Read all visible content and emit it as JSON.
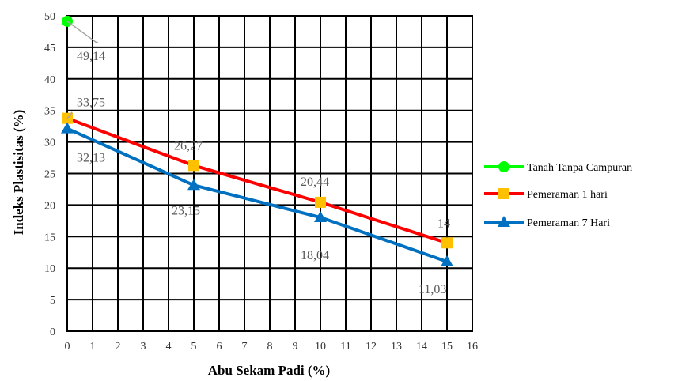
{
  "chart_data": {
    "type": "line",
    "xlabel": "Abu Sekam Padi (%)",
    "ylabel": "Indeks Plastisitas (%)",
    "xlim": [
      0,
      16
    ],
    "ylim": [
      0,
      50
    ],
    "x_ticks": [
      0,
      1,
      2,
      3,
      4,
      5,
      6,
      7,
      8,
      9,
      10,
      11,
      12,
      13,
      14,
      15,
      16
    ],
    "y_ticks": [
      0,
      5,
      10,
      15,
      20,
      25,
      30,
      35,
      40,
      45,
      50
    ],
    "grid": true,
    "legend_position": "right",
    "series": [
      {
        "name": "Tanah Tanpa Campuran",
        "color": "#00FF00",
        "marker": "circle",
        "points": [
          {
            "x": 0,
            "y": 49.14,
            "label": "49,14"
          }
        ]
      },
      {
        "name": "Pemeraman 1 hari",
        "color": "#FF0000",
        "marker_color": "#FFC000",
        "marker": "square",
        "points": [
          {
            "x": 0,
            "y": 33.75,
            "label": "33,75"
          },
          {
            "x": 5,
            "y": 26.27,
            "label": "26,27"
          },
          {
            "x": 10,
            "y": 20.44,
            "label": "20,44"
          },
          {
            "x": 15,
            "y": 14,
            "label": "14"
          }
        ]
      },
      {
        "name": "Pemeraman 7 Hari",
        "color": "#0070C0",
        "marker": "triangle",
        "points": [
          {
            "x": 0,
            "y": 32.13,
            "label": "32,13"
          },
          {
            "x": 5,
            "y": 23.15,
            "label": "23,15"
          },
          {
            "x": 10,
            "y": 18.04,
            "label": "18,04"
          },
          {
            "x": 15,
            "y": 11.03,
            "label": "11,03"
          }
        ]
      }
    ]
  }
}
